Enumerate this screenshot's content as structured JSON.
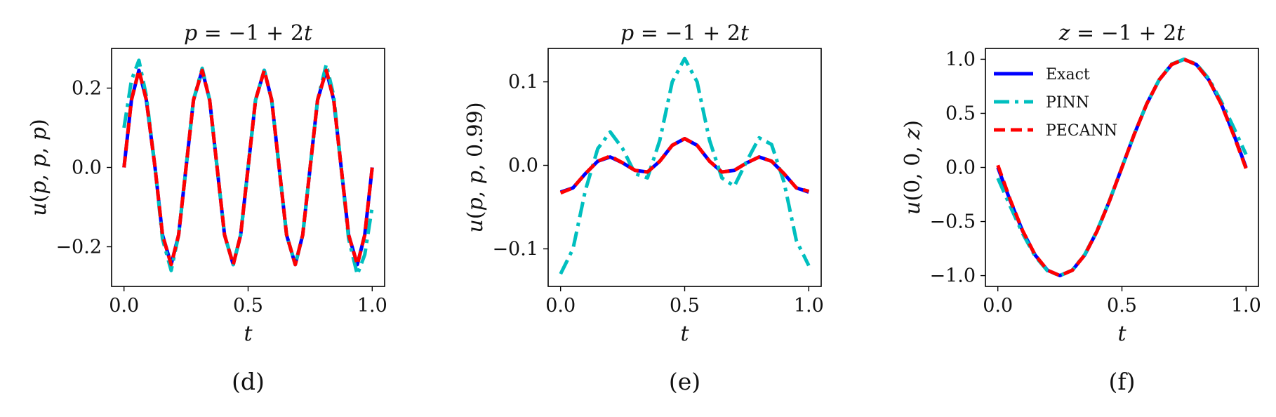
{
  "figure": {
    "panels": [
      {
        "title": "p = −1 + 2t",
        "ylabel": "u(p, p, p)",
        "xlabel": "t",
        "caption": "(d)"
      },
      {
        "title": "p = −1 + 2t",
        "ylabel": "u(p, p, 0.99)",
        "xlabel": "t",
        "caption": "(e)"
      },
      {
        "title": "z = −1 + 2t",
        "ylabel": "u(0, 0, z)",
        "xlabel": "t",
        "caption": "(f)"
      }
    ],
    "legend": {
      "entries": [
        "Exact",
        "PINN",
        "PECANN"
      ],
      "position": "upper-left (panel f)"
    }
  },
  "colors": {
    "exact": "#0000ff",
    "pinn": "#00bfbf",
    "pecann": "#ff0000"
  },
  "chart_data": [
    {
      "type": "line",
      "title": "p = −1 + 2t",
      "xlabel": "t",
      "ylabel": "u(p, p, p)",
      "xlim": [
        -0.05,
        1.05
      ],
      "ylim": [
        -0.3,
        0.3
      ],
      "xticks": [
        0.0,
        0.5,
        1.0
      ],
      "xtick_labels": [
        "0.0",
        "0.5",
        "1.0"
      ],
      "yticks": [
        -0.2,
        0.0,
        0.2
      ],
      "ytick_labels": [
        "−0.2",
        "0.0",
        "0.2"
      ],
      "x": [
        0.0,
        0.03,
        0.06,
        0.09,
        0.125,
        0.155,
        0.19,
        0.22,
        0.25,
        0.28,
        0.315,
        0.345,
        0.375,
        0.405,
        0.44,
        0.47,
        0.5,
        0.53,
        0.565,
        0.595,
        0.625,
        0.655,
        0.69,
        0.72,
        0.75,
        0.78,
        0.815,
        0.845,
        0.875,
        0.905,
        0.94,
        0.97,
        1.0
      ],
      "series": [
        {
          "name": "Exact",
          "style": "solid",
          "values": [
            0.0,
            0.17,
            0.245,
            0.17,
            0.0,
            -0.17,
            -0.245,
            -0.17,
            0.0,
            0.17,
            0.245,
            0.17,
            0.0,
            -0.17,
            -0.245,
            -0.17,
            0.0,
            0.17,
            0.245,
            0.17,
            0.0,
            -0.17,
            -0.245,
            -0.17,
            0.0,
            0.17,
            0.245,
            0.17,
            0.0,
            -0.17,
            -0.245,
            -0.17,
            0.0
          ]
        },
        {
          "name": "PINN",
          "style": "dashdot",
          "values": [
            0.1,
            0.22,
            0.27,
            0.18,
            0.0,
            -0.18,
            -0.26,
            -0.17,
            0.0,
            0.17,
            0.25,
            0.17,
            0.0,
            -0.17,
            -0.245,
            -0.17,
            0.0,
            0.17,
            0.245,
            0.17,
            0.0,
            -0.17,
            -0.245,
            -0.17,
            0.0,
            0.17,
            0.26,
            0.18,
            0.0,
            -0.18,
            -0.27,
            -0.22,
            -0.1
          ]
        },
        {
          "name": "PECANN",
          "style": "dashed",
          "values": [
            0.0,
            0.17,
            0.245,
            0.17,
            0.0,
            -0.17,
            -0.245,
            -0.17,
            0.0,
            0.17,
            0.245,
            0.17,
            0.0,
            -0.17,
            -0.245,
            -0.17,
            0.0,
            0.17,
            0.245,
            0.17,
            0.0,
            -0.17,
            -0.245,
            -0.17,
            0.0,
            0.17,
            0.245,
            0.17,
            0.0,
            -0.17,
            -0.245,
            -0.17,
            0.0
          ]
        }
      ],
      "caption": "(d)"
    },
    {
      "type": "line",
      "title": "p = −1 + 2t",
      "xlabel": "t",
      "ylabel": "u(p, p, 0.99)",
      "xlim": [
        -0.05,
        1.05
      ],
      "ylim": [
        -0.145,
        0.14
      ],
      "xticks": [
        0.0,
        0.5,
        1.0
      ],
      "xtick_labels": [
        "0.0",
        "0.5",
        "1.0"
      ],
      "yticks": [
        -0.1,
        0.0,
        0.1
      ],
      "ytick_labels": [
        "−0.1",
        "0.0",
        "0.1"
      ],
      "x": [
        0.0,
        0.05,
        0.1,
        0.15,
        0.2,
        0.25,
        0.3,
        0.35,
        0.4,
        0.45,
        0.5,
        0.55,
        0.6,
        0.65,
        0.7,
        0.75,
        0.8,
        0.85,
        0.9,
        0.95,
        1.0
      ],
      "series": [
        {
          "name": "Exact",
          "style": "solid",
          "values": [
            -0.032,
            -0.027,
            -0.01,
            0.005,
            0.01,
            0.003,
            -0.006,
            -0.008,
            0.005,
            0.024,
            0.032,
            0.024,
            0.005,
            -0.008,
            -0.006,
            0.003,
            0.01,
            0.005,
            -0.01,
            -0.027,
            -0.032
          ]
        },
        {
          "name": "PINN",
          "style": "dashdot",
          "values": [
            -0.13,
            -0.1,
            -0.03,
            0.02,
            0.04,
            0.02,
            -0.01,
            -0.015,
            0.03,
            0.1,
            0.128,
            0.1,
            0.03,
            -0.015,
            -0.025,
            0.005,
            0.033,
            0.025,
            -0.02,
            -0.09,
            -0.12
          ]
        },
        {
          "name": "PECANN",
          "style": "dashed",
          "values": [
            -0.033,
            -0.027,
            -0.01,
            0.005,
            0.011,
            0.003,
            -0.006,
            -0.008,
            0.005,
            0.024,
            0.032,
            0.024,
            0.005,
            -0.008,
            -0.006,
            0.003,
            0.01,
            0.005,
            -0.01,
            -0.027,
            -0.031
          ]
        }
      ],
      "caption": "(e)"
    },
    {
      "type": "line",
      "title": "z = −1 + 2t",
      "xlabel": "t",
      "ylabel": "u(0, 0, z)",
      "xlim": [
        -0.05,
        1.05
      ],
      "ylim": [
        -1.1,
        1.1
      ],
      "xticks": [
        0.0,
        0.5,
        1.0
      ],
      "xtick_labels": [
        "0.0",
        "0.5",
        "1.0"
      ],
      "yticks": [
        -1.0,
        -0.5,
        0.0,
        0.5,
        1.0
      ],
      "ytick_labels": [
        "−1.0",
        "−0.5",
        "0.0",
        "0.5",
        "1.0"
      ],
      "x": [
        0.0,
        0.05,
        0.1,
        0.15,
        0.2,
        0.25,
        0.3,
        0.35,
        0.4,
        0.45,
        0.5,
        0.55,
        0.6,
        0.65,
        0.7,
        0.75,
        0.8,
        0.85,
        0.9,
        0.95,
        1.0
      ],
      "series": [
        {
          "name": "Exact",
          "style": "solid",
          "values": [
            0.0,
            -0.309,
            -0.588,
            -0.809,
            -0.951,
            -1.0,
            -0.951,
            -0.809,
            -0.588,
            -0.309,
            0.0,
            0.309,
            0.588,
            0.809,
            0.951,
            1.0,
            0.951,
            0.809,
            0.588,
            0.309,
            0.0
          ]
        },
        {
          "name": "PINN",
          "style": "dashdot",
          "values": [
            -0.1,
            -0.36,
            -0.61,
            -0.82,
            -0.955,
            -1.0,
            -0.95,
            -0.805,
            -0.585,
            -0.305,
            0.0,
            0.31,
            0.59,
            0.81,
            0.955,
            1.0,
            0.955,
            0.82,
            0.61,
            0.37,
            0.12
          ]
        },
        {
          "name": "PECANN",
          "style": "dashed",
          "values": [
            0.02,
            -0.3,
            -0.585,
            -0.808,
            -0.95,
            -1.0,
            -0.951,
            -0.809,
            -0.588,
            -0.309,
            0.0,
            0.309,
            0.588,
            0.809,
            0.951,
            1.0,
            0.95,
            0.808,
            0.585,
            0.3,
            -0.01
          ]
        }
      ],
      "legend": {
        "entries": [
          "Exact",
          "PINN",
          "PECANN"
        ],
        "position": "upper-left"
      },
      "caption": "(f)"
    }
  ]
}
